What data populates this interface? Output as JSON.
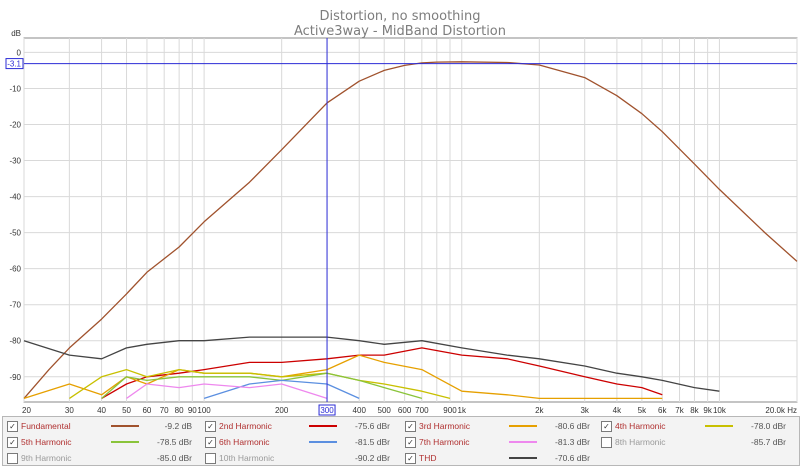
{
  "chart_data": {
    "type": "line",
    "title": "Distortion, no smoothing",
    "subtitle": "Active3way - MidBand Distortion",
    "ylabel": "dB",
    "xunit": "Hz",
    "x_scale": "log",
    "xlim": [
      20,
      20000
    ],
    "ylim": [
      -97,
      4
    ],
    "yticks": [
      0,
      -10,
      -20,
      -30,
      -40,
      -50,
      -60,
      -70,
      -80,
      -90
    ],
    "xticks": [
      20,
      30,
      40,
      50,
      60,
      70,
      80,
      90,
      100,
      200,
      300,
      400,
      500,
      600,
      700,
      800,
      900,
      1000,
      2000,
      3000,
      4000,
      5000,
      6000,
      7000,
      8000,
      9000,
      10000,
      20000
    ],
    "xtick_labels": [
      "20",
      "30",
      "40",
      "50",
      "60",
      "70",
      "80",
      "90",
      "100",
      "200",
      "300",
      "400",
      "500",
      "600",
      "700",
      "900",
      "1k",
      "2k",
      "3k",
      "4k",
      "5k",
      "6k",
      "7k",
      "8k",
      "9k",
      "10k",
      "20.0k Hz"
    ],
    "xtick_label_values": [
      20,
      30,
      40,
      50,
      60,
      70,
      80,
      90,
      100,
      200,
      300,
      400,
      500,
      600,
      700,
      900,
      1000,
      2000,
      3000,
      4000,
      5000,
      6000,
      7000,
      8000,
      9000,
      10000,
      20000
    ],
    "cursor": {
      "x": 300,
      "y": -3.1,
      "x_label": "300",
      "y_label": "-3.1"
    },
    "series": [
      {
        "name": "Fundamental",
        "color": "#a0522d",
        "x": [
          20,
          25,
          30,
          40,
          50,
          60,
          80,
          100,
          150,
          200,
          300,
          400,
          500,
          600,
          700,
          800,
          1000,
          1500,
          2000,
          3000,
          4000,
          5000,
          6000,
          8000,
          10000,
          15000,
          20000
        ],
        "y": [
          -96,
          -88,
          -82,
          -74,
          -67,
          -61,
          -54,
          -47,
          -36,
          -27,
          -14,
          -8,
          -5,
          -3.6,
          -2.9,
          -2.7,
          -2.6,
          -2.8,
          -3.5,
          -7,
          -12,
          -17,
          -22,
          -31,
          -38,
          -50,
          -58
        ]
      },
      {
        "name": "2nd Harmonic",
        "color": "#cc0000",
        "x": [
          40,
          50,
          60,
          80,
          100,
          150,
          200,
          300,
          400,
          500,
          700,
          1000,
          1500,
          2000,
          3000,
          4000,
          5000,
          6000
        ],
        "y": [
          -96,
          -92,
          -90,
          -89,
          -88,
          -86,
          -86,
          -85,
          -84,
          -84,
          -82,
          -84,
          -85,
          -87,
          -90,
          -92,
          -93,
          -95
        ]
      },
      {
        "name": "3rd Harmonic",
        "color": "#e6a000",
        "x": [
          20,
          30,
          40,
          50,
          60,
          80,
          100,
          150,
          200,
          300,
          400,
          500,
          700,
          1000,
          1500,
          2000,
          3000,
          4000,
          6000
        ],
        "y": [
          -96,
          -92,
          -95,
          -90,
          -92,
          -88,
          -89,
          -89,
          -90,
          -88,
          -84,
          -86,
          -88,
          -94,
          -95,
          -96,
          -96,
          -96,
          -96
        ]
      },
      {
        "name": "4th Harmonic",
        "color": "#c8c000",
        "x": [
          30,
          40,
          50,
          60,
          80,
          100,
          150,
          200,
          300,
          400,
          500,
          700,
          900
        ],
        "y": [
          -96,
          -90,
          -88,
          -90,
          -88,
          -89,
          -89,
          -90,
          -89,
          -91,
          -92,
          -94,
          -96
        ]
      },
      {
        "name": "5th Harmonic",
        "color": "#8ac43a",
        "x": [
          40,
          50,
          60,
          80,
          100,
          150,
          200,
          300,
          400,
          500,
          700
        ],
        "y": [
          -96,
          -90,
          -91,
          -90,
          -90,
          -90,
          -91,
          -89,
          -91,
          -93,
          -96
        ]
      },
      {
        "name": "6th Harmonic",
        "color": "#5b8fe0",
        "x": [
          100,
          150,
          200,
          300,
          400
        ],
        "y": [
          -96,
          -92,
          -91,
          -92,
          -96
        ]
      },
      {
        "name": "7th Harmonic",
        "color": "#ee88ee",
        "x": [
          50,
          60,
          80,
          100,
          150,
          200,
          300
        ],
        "y": [
          -96,
          -92,
          -93,
          -92,
          -93,
          -92,
          -96
        ]
      },
      {
        "name": "THD",
        "color": "#444444",
        "x": [
          20,
          30,
          40,
          50,
          60,
          80,
          100,
          150,
          200,
          300,
          400,
          500,
          700,
          1000,
          1500,
          2000,
          3000,
          4000,
          5000,
          6000,
          8000,
          10000
        ],
        "y": [
          -80,
          -84,
          -85,
          -82,
          -81,
          -80,
          -80,
          -79,
          -79,
          -79,
          -80,
          -81,
          -80,
          -82,
          -84,
          -85,
          -87,
          -89,
          -90,
          -91,
          -93,
          -94
        ]
      }
    ]
  },
  "legend": [
    {
      "label": "Fundamental",
      "value": "-9.2 dB",
      "color": "#a0522d",
      "checked": true
    },
    {
      "label": "2nd Harmonic",
      "value": "-75.6 dBr",
      "color": "#cc0000",
      "checked": true
    },
    {
      "label": "3rd Harmonic",
      "value": "-80.6 dBr",
      "color": "#e6a000",
      "checked": true
    },
    {
      "label": "4th Harmonic",
      "value": "-78.0 dBr",
      "color": "#c8c000",
      "checked": true
    },
    {
      "label": "5th Harmonic",
      "value": "-78.5 dBr",
      "color": "#8ac43a",
      "checked": true
    },
    {
      "label": "6th Harmonic",
      "value": "-81.5 dBr",
      "color": "#5b8fe0",
      "checked": true
    },
    {
      "label": "7th Harmonic",
      "value": "-81.3 dBr",
      "color": "#ee88ee",
      "checked": true
    },
    {
      "label": "8th Harmonic",
      "value": "-85.7 dBr",
      "color": "",
      "checked": false
    },
    {
      "label": "9th Harmonic",
      "value": "-85.0 dBr",
      "color": "",
      "checked": false
    },
    {
      "label": "10th Harmonic",
      "value": "-90.2 dBr",
      "color": "",
      "checked": false
    },
    {
      "label": "THD",
      "value": "-70.6 dBr",
      "color": "#444444",
      "checked": true
    }
  ],
  "legend_colors": {
    "label_color": "#b03030",
    "label_color_alt": "#2aa7a7"
  }
}
